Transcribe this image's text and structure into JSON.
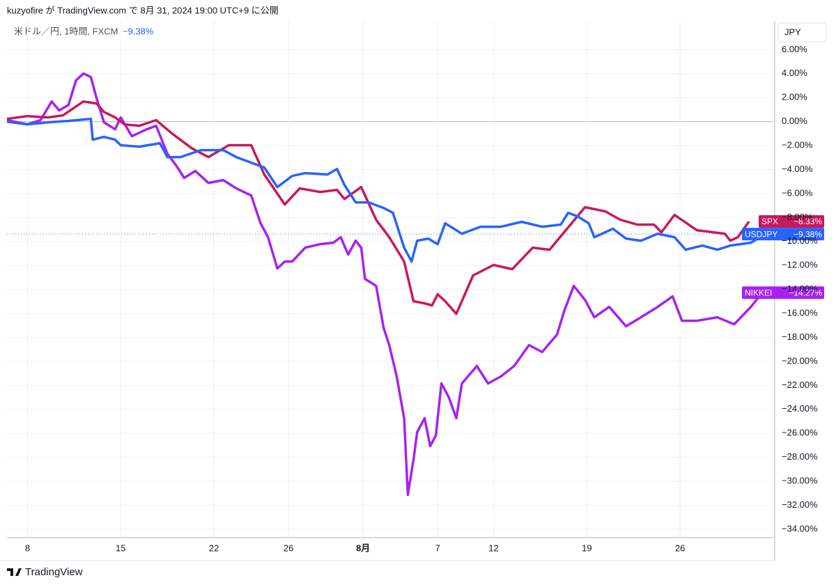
{
  "chart_data": {
    "type": "line",
    "header": "kuzyofire が TradingView.com で 8月 31, 2024 19:00 UTC+9 に公開",
    "title": "米ドル／円, 1時間, FXCM",
    "title_change": "−9.38%",
    "y_axis_label": "JPY",
    "brand": "TradingView",
    "xlim": [
      -1.1,
      40
    ],
    "xticks": [
      {
        "value": 0,
        "label": "8"
      },
      {
        "value": 5,
        "label": "15"
      },
      {
        "value": 10,
        "label": "22"
      },
      {
        "value": 14,
        "label": "26"
      },
      {
        "value": 18,
        "label": "8月"
      },
      {
        "value": 22,
        "label": "7"
      },
      {
        "value": 25,
        "label": "12"
      },
      {
        "value": 30,
        "label": "19"
      },
      {
        "value": 35,
        "label": "26"
      }
    ],
    "ylim": [
      -34.7,
      8.4
    ],
    "yticks": [
      {
        "value": 6,
        "label": "6.00%"
      },
      {
        "value": 4,
        "label": "4.00%"
      },
      {
        "value": 2,
        "label": "2.00%"
      },
      {
        "value": 0,
        "label": "0.00%"
      },
      {
        "value": -2,
        "label": "−2.00%"
      },
      {
        "value": -4,
        "label": "−4.00%"
      },
      {
        "value": -6,
        "label": "−6.00%"
      },
      {
        "value": -8,
        "label": "−8.00%"
      },
      {
        "value": -10,
        "label": "−10.00%"
      },
      {
        "value": -12,
        "label": "−12.00%"
      },
      {
        "value": -14,
        "label": "−14.00%"
      },
      {
        "value": -16,
        "label": "−16.00%"
      },
      {
        "value": -18,
        "label": "−18.00%"
      },
      {
        "value": -20,
        "label": "−20.00%"
      },
      {
        "value": -22,
        "label": "−22.00%"
      },
      {
        "value": -24,
        "label": "−24.00%"
      },
      {
        "value": -26,
        "label": "−26.00%"
      },
      {
        "value": -28,
        "label": "−28.00%"
      },
      {
        "value": -30,
        "label": "−30.00%"
      },
      {
        "value": -32,
        "label": "−32.00%"
      },
      {
        "value": -34,
        "label": "−34.00%"
      }
    ],
    "grid": true,
    "series": [
      {
        "name": "NIKKEI",
        "color": "#a821f0",
        "end_label": "−14.27%",
        "x": [
          -1.1,
          0,
          0.7,
          1.3,
          1.7,
          2.2,
          2.6,
          3.0,
          3.4,
          3.7,
          4.1,
          4.7,
          5.0,
          5.6,
          6.4,
          6.9,
          7.5,
          8.0,
          8.4,
          9.0,
          9.7,
          10.5,
          11.2,
          12.0,
          12.5,
          12.9,
          13.4,
          13.8,
          14.2,
          14.9,
          15.7,
          16.4,
          16.8,
          17.2,
          17.6,
          17.9,
          18.1,
          18.7,
          19.1,
          19.4,
          19.8,
          20.2,
          20.4,
          20.7,
          20.9,
          21.3,
          21.6,
          21.9,
          22.2,
          22.6,
          23.0,
          23.3,
          24.1,
          24.7,
          25.4,
          26.1,
          26.9,
          27.6,
          28.4,
          28.8,
          29.3,
          29.9,
          30.4,
          31.2,
          32.1,
          32.9,
          33.8,
          34.6,
          35.1,
          35.9,
          37.0,
          37.9,
          38.8,
          39.4
        ],
        "values": [
          0.12,
          -0.23,
          0.12,
          1.68,
          0.93,
          1.39,
          3.43,
          4.01,
          3.72,
          1.97,
          -0.06,
          -0.64,
          0.35,
          -1.22,
          -0.64,
          -0.35,
          -2.67,
          -3.72,
          -4.7,
          -4.12,
          -5.11,
          -4.88,
          -5.57,
          -6.16,
          -8.48,
          -9.64,
          -12.25,
          -11.67,
          -11.67,
          -10.51,
          -10.22,
          -10.1,
          -9.64,
          -11.09,
          -9.93,
          -10.51,
          -13.12,
          -13.7,
          -17.19,
          -18.64,
          -21.25,
          -24.74,
          -31.13,
          -28.22,
          -25.9,
          -24.74,
          -27.06,
          -26.19,
          -21.84,
          -23.0,
          -24.74,
          -21.84,
          -20.38,
          -21.84,
          -21.25,
          -20.38,
          -18.64,
          -19.22,
          -17.77,
          -15.74,
          -13.7,
          -14.87,
          -16.32,
          -15.45,
          -17.07,
          -16.32,
          -15.45,
          -14.58,
          -16.61,
          -16.61,
          -16.32,
          -16.9,
          -15.45,
          -14.27
        ]
      },
      {
        "name": "SPX",
        "color": "#c8185e",
        "end_label": "−8.33%",
        "x": [
          -1.1,
          0,
          1.1,
          1.9,
          3.0,
          3.7,
          4.1,
          4.7,
          5.2,
          6.0,
          6.9,
          7.7,
          8.8,
          9.7,
          10.8,
          12.0,
          12.7,
          13.8,
          14.6,
          15.7,
          16.6,
          17.0,
          17.9,
          18.7,
          19.4,
          20.2,
          20.7,
          21.3,
          21.7,
          22.0,
          22.4,
          23.0,
          23.9,
          25.0,
          26.0,
          27.1,
          28.0,
          29.9,
          31.0,
          31.8,
          32.7,
          33.6,
          34.0,
          34.7,
          35.9,
          37.4,
          37.7,
          38.1,
          38.7
        ],
        "values": [
          0.23,
          0.46,
          0.35,
          0.52,
          1.68,
          1.51,
          0.81,
          0.35,
          -0.23,
          -0.35,
          0.12,
          -0.93,
          -2.21,
          -2.96,
          -1.97,
          -1.97,
          -4.41,
          -6.91,
          -5.57,
          -5.87,
          -5.69,
          -6.45,
          -5.46,
          -8.19,
          -9.64,
          -11.67,
          -14.98,
          -15.16,
          -15.33,
          -14.4,
          -14.98,
          -16.03,
          -12.83,
          -11.96,
          -12.31,
          -10.51,
          -10.69,
          -7.14,
          -7.49,
          -8.19,
          -8.59,
          -8.59,
          -9.23,
          -7.78,
          -9.06,
          -9.35,
          -9.93,
          -9.64,
          -8.33
        ]
      },
      {
        "name": "USDJPY",
        "color": "#2962ff",
        "end_label": "−9.38%",
        "x": [
          -1.1,
          0,
          1.1,
          2.2,
          3.4,
          3.5,
          4.1,
          4.7,
          5.0,
          6.0,
          7.1,
          7.5,
          8.2,
          9.3,
          10.5,
          11.2,
          12.7,
          13.4,
          14.2,
          14.9,
          16.1,
          16.6,
          17.0,
          17.6,
          18.3,
          19.1,
          19.6,
          20.2,
          20.6,
          20.9,
          21.5,
          22.0,
          22.4,
          23.3,
          24.3,
          25.4,
          26.5,
          27.6,
          28.6,
          29.0,
          29.5,
          30.1,
          30.4,
          31.4,
          32.1,
          32.9,
          33.8,
          34.7,
          35.3,
          36.2,
          37.0,
          37.7,
          38.8,
          39.6
        ],
        "values": [
          0,
          -0.23,
          -0.06,
          0.06,
          0.23,
          -1.51,
          -1.28,
          -1.51,
          -1.97,
          -2.09,
          -1.8,
          -2.96,
          -2.96,
          -2.38,
          -2.38,
          -2.96,
          -3.83,
          -5.46,
          -4.53,
          -4.3,
          -4.41,
          -3.95,
          -5.28,
          -6.74,
          -6.74,
          -7.2,
          -7.61,
          -10.51,
          -11.67,
          -9.93,
          -9.76,
          -10.22,
          -8.48,
          -9.35,
          -8.77,
          -8.77,
          -8.36,
          -8.77,
          -8.59,
          -7.61,
          -7.9,
          -8.48,
          -9.64,
          -8.94,
          -9.76,
          -9.93,
          -9.35,
          -9.64,
          -10.69,
          -10.34,
          -10.69,
          -10.34,
          -10.1,
          -9.38
        ]
      }
    ]
  }
}
